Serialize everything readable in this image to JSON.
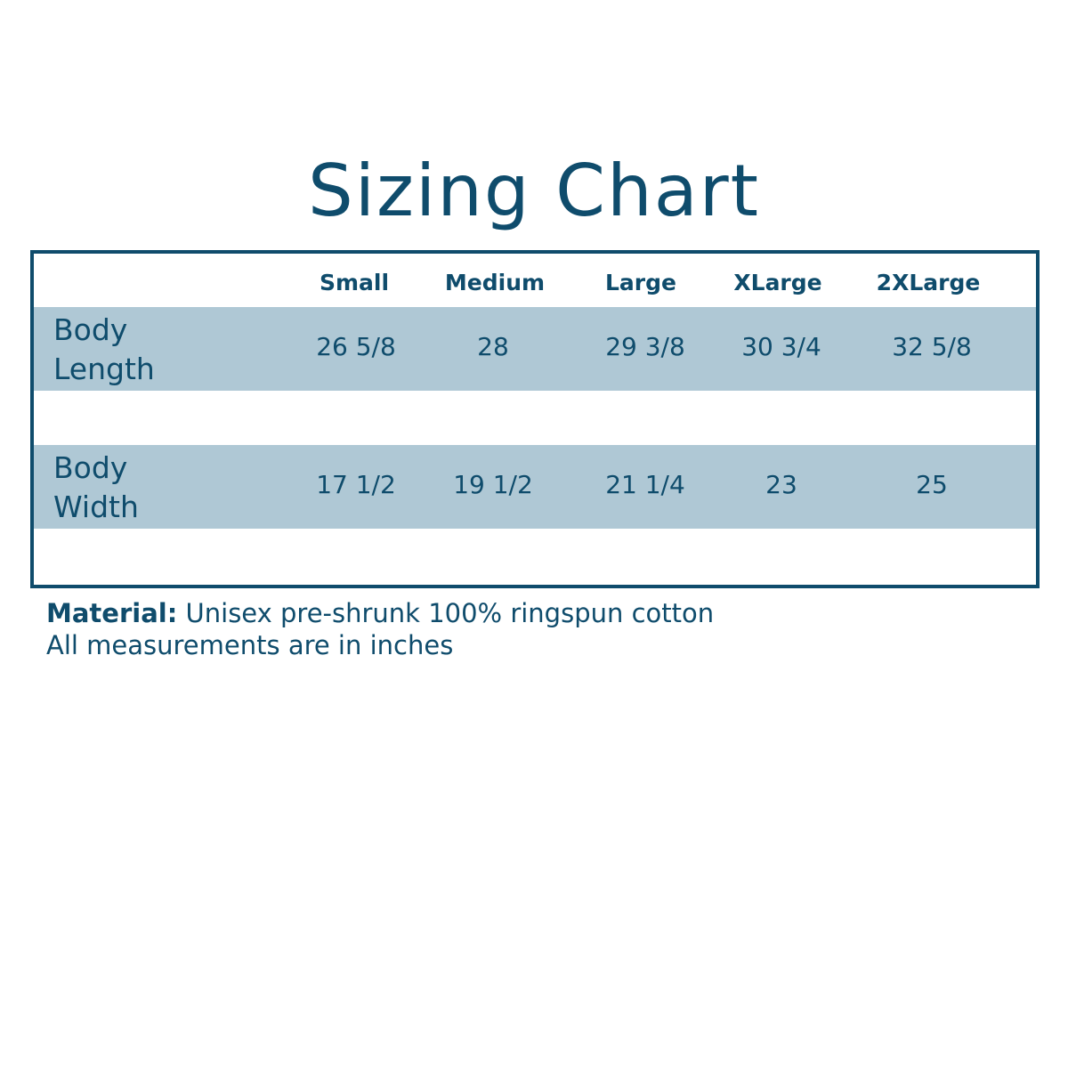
{
  "title": "Sizing Chart",
  "sizes": [
    "Small",
    "Medium",
    "Large",
    "XLarge",
    "2XLarge"
  ],
  "rows": [
    {
      "label_line1": "Body",
      "label_line2": "Length",
      "values": [
        "26 5/8",
        "28",
        "29 3/8",
        "30 3/4",
        "32 5/8"
      ]
    },
    {
      "label_line1": "Body",
      "label_line2": "Width",
      "values": [
        "17 1/2",
        "19 1/2",
        "21 1/4",
        "23",
        "25"
      ]
    }
  ],
  "footer": {
    "material_label": "Material:",
    "material_text": " Unisex pre-shrunk 100% ringspun cotton",
    "note": "All measurements are in inches"
  },
  "colors": {
    "text": "#0f4c6c",
    "band": "#afc8d5"
  }
}
